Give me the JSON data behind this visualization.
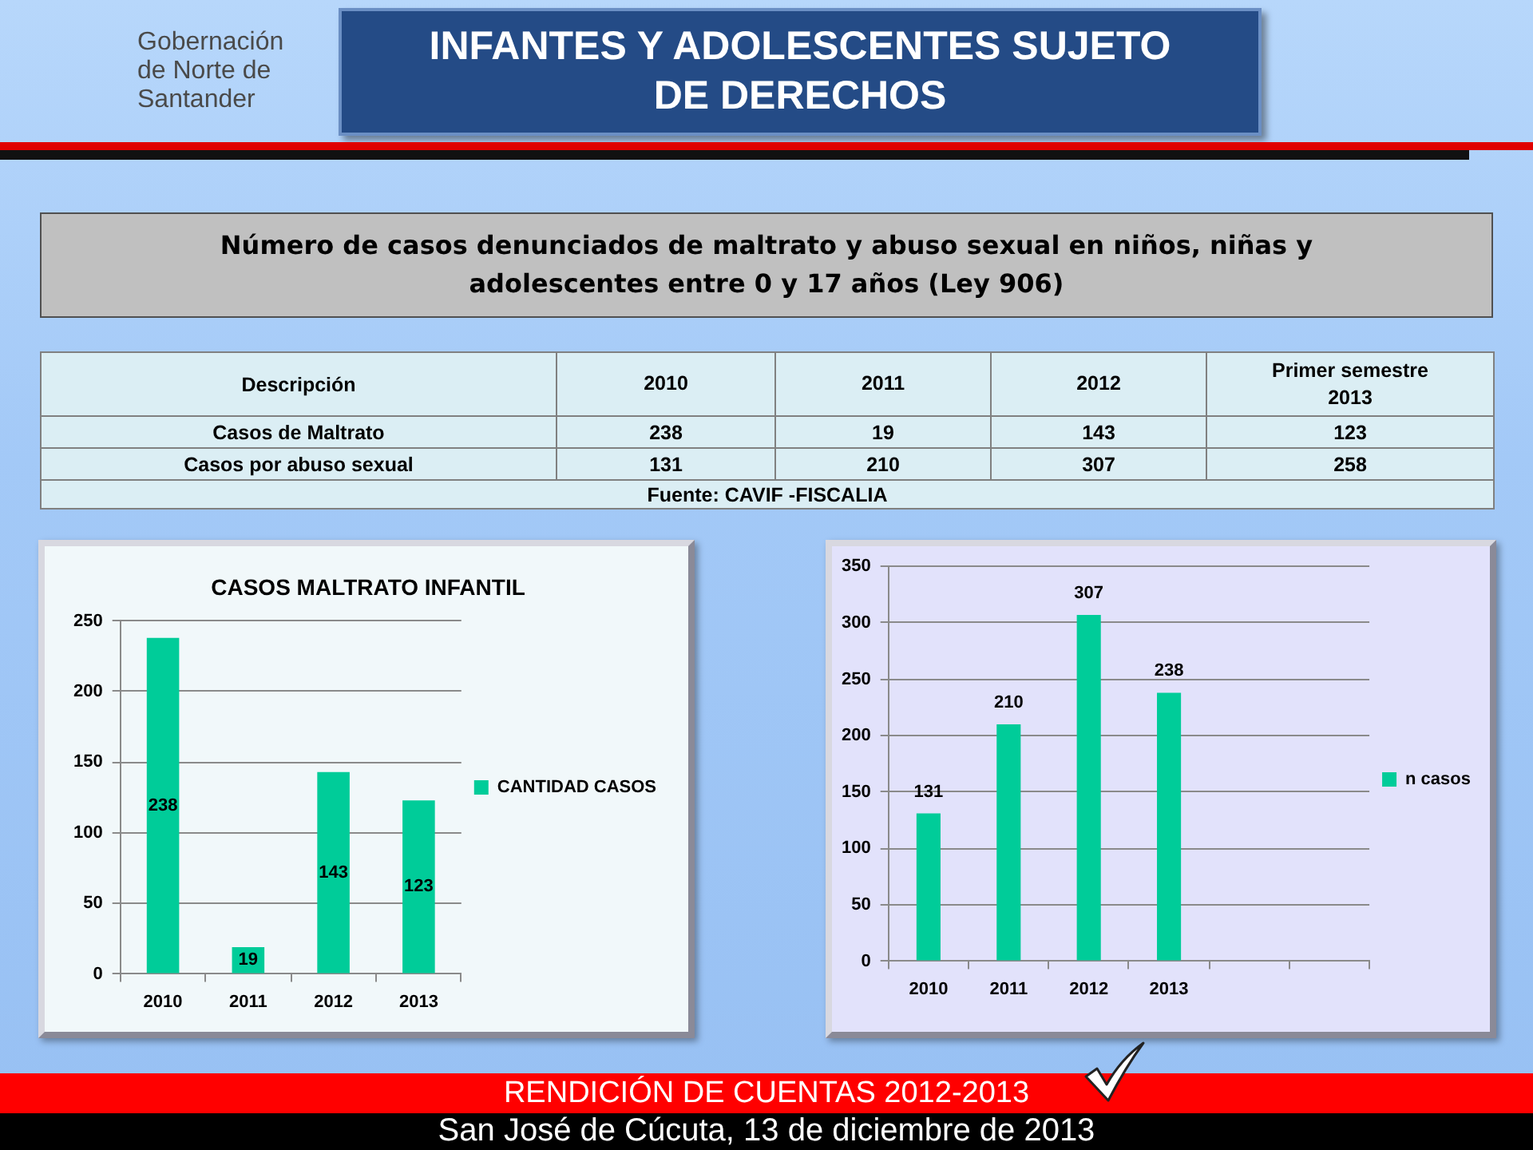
{
  "chart_data": [
    {
      "type": "other",
      "title": "INFANTES Y ADOLESCENTES SUJETO DE DERECHOS",
      "subtitle": "Número de casos denunciados de maltrato y abuso sexual en niños, niñas y adolescentes entre 0 y 17 años (Ley 906)",
      "legend_title": "Descripción",
      "categories": [
        "2010",
        "2011",
        "2012",
        "Primer semestre 2013"
      ],
      "series": [
        {
          "name": "Casos de Maltrato",
          "values": [
            238,
            19,
            143,
            123
          ]
        },
        {
          "name": "Casos por abuso sexual",
          "values": [
            131,
            210,
            307,
            258
          ]
        }
      ],
      "data_labels": true,
      "annotations": [
        "Gobernación de Norte de Santander",
        "Fuente: CAVIF -FISCALIA",
        "RENDICIÓN DE CUENTAS 2012-2013",
        "San José de Cúcuta, 13 de diciembre de 2013"
      ]
    },
    {
      "type": "bar",
      "title": "CASOS MALTRATO INFANTIL",
      "categories": [
        "2010",
        "2011",
        "2012",
        "2013"
      ],
      "series": [
        {
          "name": "CANTIDAD CASOS",
          "color": "#00cc99",
          "values": [
            238,
            19,
            143,
            123
          ]
        }
      ],
      "ylim": [
        0,
        250
      ],
      "yticks": [
        0,
        50,
        100,
        150,
        200,
        250
      ],
      "grid": "y",
      "legend": "right",
      "data_labels": true
    },
    {
      "type": "bar",
      "categories": [
        "2010",
        "2011",
        "2012",
        "2013",
        null,
        null
      ],
      "series": [
        {
          "name": "n casos",
          "color": "#00cc99",
          "values": [
            131,
            210,
            307,
            238,
            null,
            null
          ]
        }
      ],
      "ylim": [
        0,
        350
      ],
      "yticks": [
        0,
        50,
        100,
        150,
        200,
        250,
        300,
        350
      ],
      "grid": "y",
      "legend": "right",
      "data_labels": true
    }
  ]
}
